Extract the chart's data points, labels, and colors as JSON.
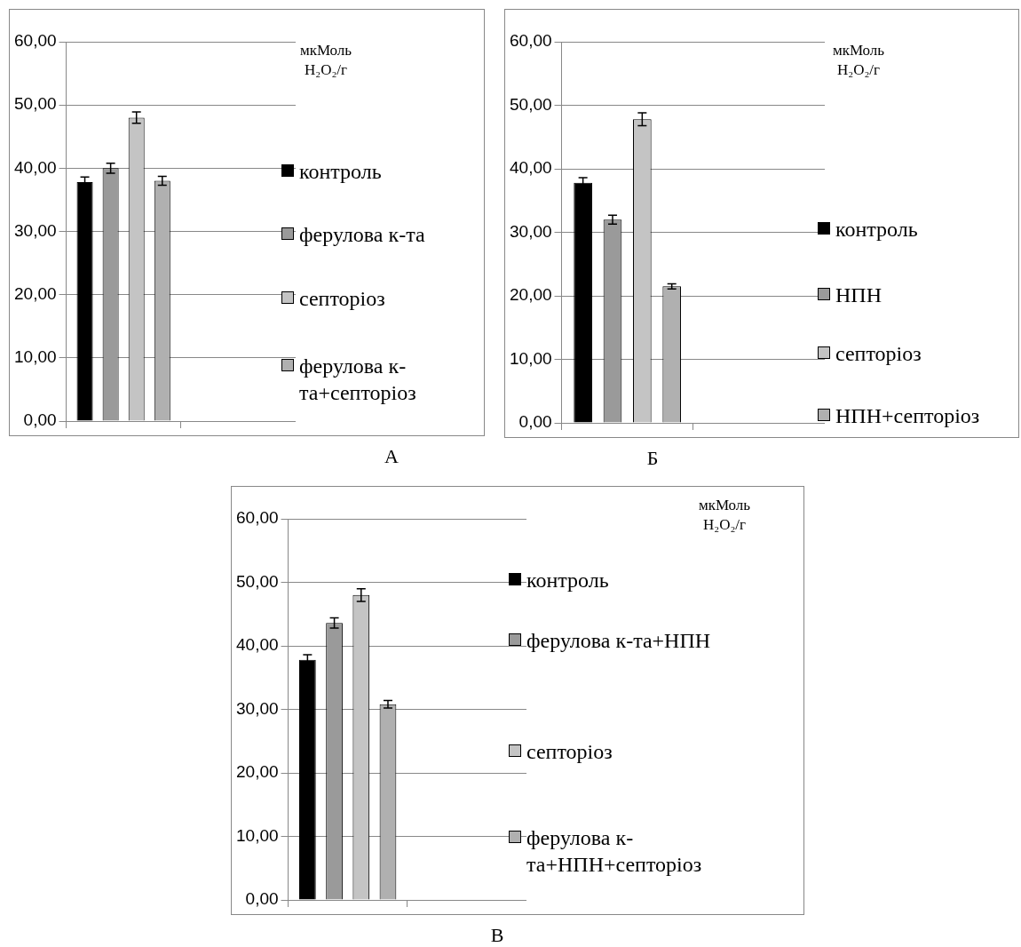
{
  "chart_data": [
    {
      "type": "bar",
      "xlabel": "А",
      "ylabel": "мкМоль H₂O₂/г",
      "categories": [
        null,
        null
      ],
      "ylim": [
        0,
        60
      ],
      "yticks": [
        {
          "value": 0,
          "label": "0,00"
        },
        {
          "value": 10,
          "label": "10,00"
        },
        {
          "value": 20,
          "label": "20,00"
        },
        {
          "value": 30,
          "label": "30,00"
        },
        {
          "value": 40,
          "label": "40,00"
        },
        {
          "value": 50,
          "label": "50,00"
        },
        {
          "value": 60,
          "label": "60,00"
        }
      ],
      "grid": "y",
      "legend": "right",
      "tick_labels": "y",
      "series": [
        {
          "name": "контроль",
          "color": "#000000",
          "values": [
            37.8,
            null
          ],
          "errors": [
            0.8,
            null
          ]
        },
        {
          "name": "ферулова к-та",
          "color": "#9a9a9a",
          "values": [
            40,
            null
          ],
          "errors": [
            0.8,
            null
          ]
        },
        {
          "name": "септоріоз",
          "color": "#c4c4c4",
          "values": [
            48,
            null
          ],
          "errors": [
            0.9,
            null
          ]
        },
        {
          "name": "ферулова к-та+септоріоз",
          "color": "#b0b0b0",
          "values": [
            38,
            null
          ],
          "errors": [
            0.7,
            null
          ]
        }
      ]
    },
    {
      "type": "bar",
      "xlabel": "Б",
      "ylabel": "мкМоль H₂O₂/г",
      "categories": [
        null,
        null
      ],
      "ylim": [
        0,
        60
      ],
      "yticks": [
        {
          "value": 0,
          "label": "0,00"
        },
        {
          "value": 10,
          "label": "10,00"
        },
        {
          "value": 20,
          "label": "20,00"
        },
        {
          "value": 30,
          "label": "30,00"
        },
        {
          "value": 40,
          "label": "40,00"
        },
        {
          "value": 50,
          "label": "50,00"
        },
        {
          "value": 60,
          "label": "60,00"
        }
      ],
      "grid": "y",
      "legend": "right",
      "tick_labels": "y",
      "series": [
        {
          "name": "контроль",
          "color": "#000000",
          "values": [
            37.8,
            null
          ],
          "errors": [
            0.8,
            null
          ]
        },
        {
          "name": "НПН",
          "color": "#9a9a9a",
          "values": [
            32,
            null
          ],
          "errors": [
            0.7,
            null
          ]
        },
        {
          "name": "септоріоз",
          "color": "#c4c4c4",
          "values": [
            47.8,
            null
          ],
          "errors": [
            1,
            null
          ]
        },
        {
          "name": "НПН+септоріоз",
          "color": "#b0b0b0",
          "values": [
            21.5,
            null
          ],
          "errors": [
            0.4,
            null
          ]
        }
      ]
    },
    {
      "type": "bar",
      "xlabel": "В",
      "ylabel": "мкМоль H₂O₂/г",
      "categories": [
        null,
        null
      ],
      "ylim": [
        0,
        60
      ],
      "yticks": [
        {
          "value": 0,
          "label": "0,00"
        },
        {
          "value": 10,
          "label": "10,00"
        },
        {
          "value": 20,
          "label": "20,00"
        },
        {
          "value": 30,
          "label": "30,00"
        },
        {
          "value": 40,
          "label": "40,00"
        },
        {
          "value": 50,
          "label": "50,00"
        },
        {
          "value": 60,
          "label": "60,00"
        }
      ],
      "grid": "y",
      "legend": "right",
      "tick_labels": "y",
      "series": [
        {
          "name": "контроль",
          "color": "#000000",
          "values": [
            37.8,
            null
          ],
          "errors": [
            0.8,
            null
          ]
        },
        {
          "name": "ферулова к-та+НПН",
          "color": "#9a9a9a",
          "values": [
            43.6,
            null
          ],
          "errors": [
            0.8,
            null
          ]
        },
        {
          "name": "септоріоз",
          "color": "#c4c4c4",
          "values": [
            48,
            null
          ],
          "errors": [
            1,
            null
          ]
        },
        {
          "name": "ферулова к-та+НПН+септоріоз",
          "color": "#b0b0b0",
          "values": [
            30.8,
            null
          ],
          "errors": [
            0.6,
            null
          ]
        }
      ]
    }
  ]
}
